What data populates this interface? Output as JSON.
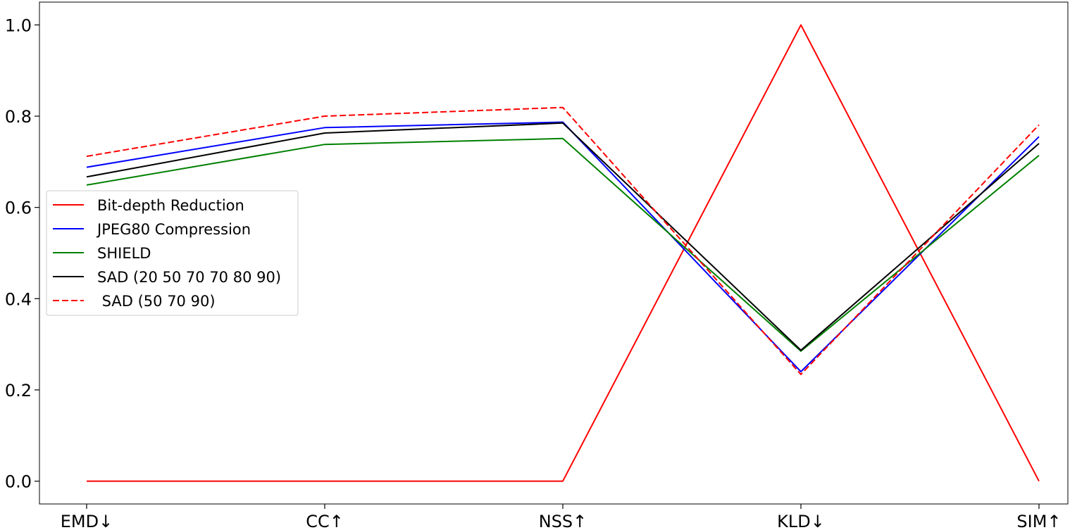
{
  "chart_data": {
    "type": "line",
    "title": "",
    "xlabel": "",
    "ylabel": "",
    "categories": [
      "EMD↓",
      "CC↑",
      "NSS↑",
      "KLD↓",
      "SIM↑"
    ],
    "ylim": [
      -0.05,
      1.05
    ],
    "yticks": [
      0.0,
      0.2,
      0.4,
      0.6,
      0.8,
      1.0
    ],
    "ytick_labels": [
      "0.0",
      "0.2",
      "0.4",
      "0.6",
      "0.8",
      "1.0"
    ],
    "grid": false,
    "legend_position": "center-left",
    "series": [
      {
        "name": "Bit-depth Reduction",
        "color": "#ff0000",
        "dash": "solid",
        "values": [
          0.0,
          0.0,
          0.0,
          1.0,
          0.0
        ]
      },
      {
        "name": "JPEG80 Compression",
        "color": "#0000ff",
        "dash": "solid",
        "values": [
          0.688,
          0.775,
          0.787,
          0.24,
          0.755
        ]
      },
      {
        "name": "SHIELD",
        "color": "#008000",
        "dash": "solid",
        "values": [
          0.649,
          0.738,
          0.751,
          0.285,
          0.714
        ]
      },
      {
        "name": "SAD (20 50 70 70 80 90)",
        "color": "#000000",
        "dash": "solid",
        "values": [
          0.667,
          0.763,
          0.785,
          0.287,
          0.74
        ]
      },
      {
        "name": " SAD (50 70 90)",
        "color": "#ff0000",
        "dash": "dashed",
        "values": [
          0.712,
          0.8,
          0.819,
          0.234,
          0.781
        ]
      }
    ]
  }
}
